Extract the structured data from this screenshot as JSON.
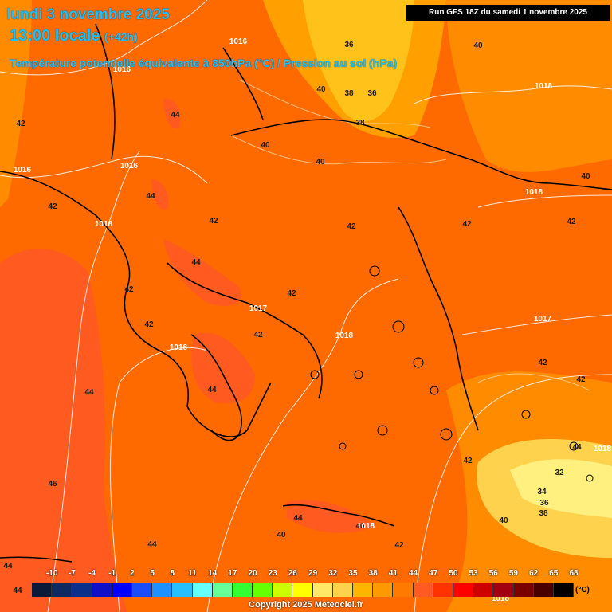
{
  "header": {
    "date_line": "lundi 3 novembre 2025",
    "time_line": "13:00 locale",
    "offset": "(+42h)",
    "parameter_line": "Température potentielle équivalente à 850hPa (°C) / Pression au sol (hPa)",
    "run_info": "Run GFS 18Z du samedi 1 novembre 2025"
  },
  "map": {
    "theta_labels": [
      {
        "t": "36"
      },
      {
        "t": "36"
      },
      {
        "t": "38"
      },
      {
        "t": "38"
      },
      {
        "t": "40"
      },
      {
        "t": "40"
      },
      {
        "t": "40"
      },
      {
        "t": "40"
      },
      {
        "t": "42"
      },
      {
        "t": "42"
      },
      {
        "t": "42"
      },
      {
        "t": "42"
      },
      {
        "t": "42"
      },
      {
        "t": "42"
      },
      {
        "t": "42"
      },
      {
        "t": "42"
      },
      {
        "t": "42"
      },
      {
        "t": "42"
      },
      {
        "t": "42"
      },
      {
        "t": "42"
      },
      {
        "t": "42"
      },
      {
        "t": "42"
      },
      {
        "t": "44"
      },
      {
        "t": "44"
      },
      {
        "t": "44"
      },
      {
        "t": "44"
      },
      {
        "t": "44"
      },
      {
        "t": "44"
      },
      {
        "t": "44"
      },
      {
        "t": "44"
      },
      {
        "t": "44"
      },
      {
        "t": "44"
      },
      {
        "t": "46"
      },
      {
        "t": "46"
      },
      {
        "t": "34"
      },
      {
        "t": "36"
      },
      {
        "t": "38"
      },
      {
        "t": "32"
      },
      {
        "t": "40"
      },
      {
        "t": "40"
      },
      {
        "t": "40"
      }
    ],
    "pressure_labels": [
      {
        "t": "1016"
      },
      {
        "t": "1016"
      },
      {
        "t": "1016"
      },
      {
        "t": "1016"
      },
      {
        "t": "1018"
      },
      {
        "t": "1018"
      },
      {
        "t": "1018"
      },
      {
        "t": "1017"
      },
      {
        "t": "1018"
      },
      {
        "t": "1018"
      },
      {
        "t": "1017"
      },
      {
        "t": "1018"
      },
      {
        "t": "1018"
      },
      {
        "t": "1018"
      }
    ]
  },
  "legend": {
    "ticks": [
      "-10",
      "-7",
      "-4",
      "-1",
      "2",
      "5",
      "8",
      "11",
      "14",
      "17",
      "20",
      "23",
      "26",
      "29",
      "32",
      "35",
      "38",
      "41",
      "44",
      "47",
      "50",
      "53",
      "56",
      "59",
      "62",
      "65",
      "68"
    ],
    "colors": [
      "#0b1a3a",
      "#0e2a60",
      "#0c2f8c",
      "#1010c8",
      "#0000ff",
      "#1a4dff",
      "#1e90ff",
      "#27c0ff",
      "#66ffff",
      "#66ff99",
      "#33ff33",
      "#66ff00",
      "#ccff00",
      "#ffff00",
      "#ffe866",
      "#ffd24d",
      "#ffb400",
      "#ff9900",
      "#ff7a00",
      "#ff5a1f",
      "#ff3300",
      "#ff0000",
      "#cc0000",
      "#a00010",
      "#7a0000",
      "#4a0000",
      "#000000"
    ],
    "unit": "(°C)"
  },
  "footer": {
    "copyright": "Copyright 2025 Meteociel.fr"
  }
}
